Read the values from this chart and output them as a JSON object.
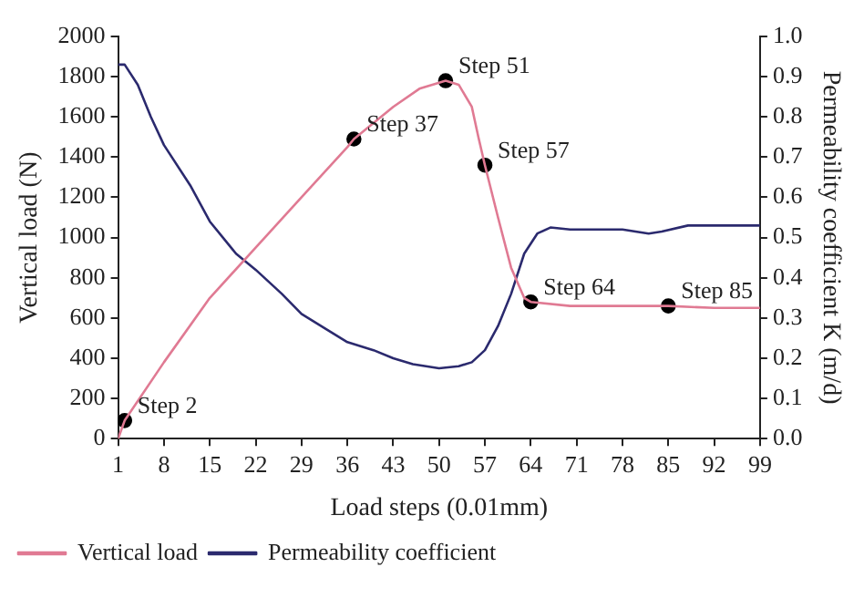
{
  "chart_data": {
    "type": "line",
    "xlabel": "Load steps (0.01mm)",
    "ylabel": "Vertical load (N)",
    "y2label": "Permeability coefficient K (m/d)",
    "xlim": [
      1,
      99
    ],
    "xticks": [
      1,
      8,
      15,
      22,
      29,
      36,
      43,
      50,
      57,
      64,
      71,
      78,
      85,
      92,
      99
    ],
    "ylim": [
      0,
      2000
    ],
    "yticks": [
      0,
      200,
      400,
      600,
      800,
      1000,
      1200,
      1400,
      1600,
      1800,
      2000
    ],
    "y2lim": [
      0,
      1
    ],
    "y2ticks": [
      {
        "value": 0,
        "label": "0.0"
      },
      0.1,
      0.2,
      0.3,
      0.4,
      0.5,
      0.6,
      0.7,
      0.8,
      0.9,
      {
        "value": 1,
        "label": "1.0"
      }
    ],
    "legend": "bottom",
    "grid": false,
    "marker": "none",
    "series": [
      {
        "name": "Vertical load",
        "color": "#e07a93",
        "x": [
          1,
          2,
          8,
          15,
          22,
          29,
          36,
          37,
          43,
          47,
          50,
          51,
          53,
          55,
          56,
          57,
          59,
          61,
          63,
          64,
          70,
          78,
          85,
          92,
          99
        ],
        "values": [
          0,
          90,
          380,
          700,
          950,
          1200,
          1450,
          1490,
          1650,
          1740,
          1770,
          1780,
          1760,
          1650,
          1500,
          1360,
          1100,
          850,
          700,
          680,
          660,
          660,
          660,
          650,
          650
        ]
      },
      {
        "name": "Permeability coefficient",
        "color": "#2b2a6e",
        "axis": "y2",
        "x": [
          1,
          2,
          4,
          6,
          8,
          12,
          15,
          19,
          22,
          26,
          29,
          33,
          36,
          40,
          43,
          46,
          50,
          53,
          55,
          57,
          59,
          61,
          63,
          65,
          67,
          70,
          78,
          82,
          84,
          88,
          92,
          99
        ],
        "values": [
          0.93,
          0.93,
          0.88,
          0.8,
          0.73,
          0.63,
          0.54,
          0.46,
          0.42,
          0.36,
          0.31,
          0.27,
          0.24,
          0.22,
          0.2,
          0.185,
          0.175,
          0.18,
          0.19,
          0.22,
          0.28,
          0.36,
          0.46,
          0.51,
          0.525,
          0.52,
          0.52,
          0.51,
          0.515,
          0.53,
          0.53,
          0.53
        ]
      },
      {
        "type": "scatter",
        "color": "#000000",
        "marker": "circle",
        "x": [
          2,
          37,
          51,
          57,
          64,
          85
        ],
        "values": [
          90,
          1490,
          1780,
          1360,
          680,
          660
        ]
      }
    ],
    "annotations": [
      {
        "text": "Step 2",
        "x": 2,
        "y": 90
      },
      {
        "text": "Step 37",
        "x": 37,
        "y": 1490
      },
      {
        "text": "Step 51",
        "x": 51,
        "y": 1780
      },
      {
        "text": "Step 57",
        "x": 57,
        "y": 1360
      },
      {
        "text": "Step 64",
        "x": 64,
        "y": 680
      },
      {
        "text": "Step 85",
        "x": 85,
        "y": 660
      }
    ]
  }
}
